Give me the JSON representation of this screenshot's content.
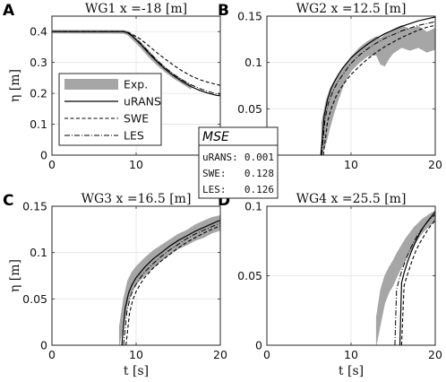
{
  "chart_data": [
    {
      "type": "line",
      "panel_letter": "A",
      "title": "WG1 x =-18 [m]",
      "xlabel": "",
      "ylabel": "η [m]",
      "xlim": [
        0,
        20
      ],
      "ylim": [
        0,
        0.45
      ],
      "xticks": [
        0,
        10
      ],
      "yticks": [
        0,
        0.1,
        0.2,
        0.3,
        0.4
      ],
      "grid": true,
      "legend": {
        "placement": "lower-left",
        "entries": [
          "Exp.",
          "uRANS",
          "SWE",
          "LES"
        ]
      },
      "series": [
        {
          "name": "Exp.",
          "style": "band",
          "color": "#a6a6a6",
          "x": [
            0,
            8.5,
            9.0,
            9.5,
            10.5,
            11.5,
            12.5,
            13.5,
            14.5,
            15.5,
            16.5
          ],
          "lower": [
            0.395,
            0.394,
            0.389,
            0.376,
            0.349,
            0.318,
            0.291,
            0.268,
            0.248,
            0.231,
            0.214
          ],
          "upper": [
            0.405,
            0.404,
            0.401,
            0.392,
            0.367,
            0.338,
            0.309,
            0.284,
            0.262,
            0.245,
            0.228
          ]
        },
        {
          "name": "uRANS",
          "style": "solid",
          "color": "#000000",
          "x": [
            0,
            8.5,
            9.0,
            9.5,
            10.5,
            11.5,
            12.5,
            13.5,
            14.5,
            15.5,
            16.5,
            17.5,
            18.5,
            19.5,
            20
          ],
          "y": [
            0.4,
            0.4,
            0.396,
            0.386,
            0.36,
            0.33,
            0.302,
            0.277,
            0.256,
            0.238,
            0.222,
            0.21,
            0.201,
            0.194,
            0.192
          ]
        },
        {
          "name": "SWE",
          "style": "dashed",
          "color": "#000000",
          "x": [
            0,
            8.5,
            9.0,
            9.5,
            10.5,
            11.5,
            12.5,
            13.5,
            14.5,
            15.5,
            16.5,
            17.5,
            18.5,
            19.5,
            20
          ],
          "y": [
            0.4,
            0.4,
            0.398,
            0.392,
            0.376,
            0.354,
            0.331,
            0.31,
            0.29,
            0.272,
            0.257,
            0.245,
            0.236,
            0.229,
            0.226
          ]
        },
        {
          "name": "LES",
          "style": "dashdot",
          "color": "#000000",
          "x": [
            0,
            8.5,
            9.0,
            9.5,
            10.5,
            11.5,
            12.5,
            13.5,
            14.5,
            15.5,
            16.5,
            17.5,
            18.5,
            19.5,
            20
          ],
          "y": [
            0.4,
            0.4,
            0.397,
            0.388,
            0.363,
            0.334,
            0.306,
            0.282,
            0.261,
            0.243,
            0.228,
            0.216,
            0.206,
            0.199,
            0.197
          ]
        }
      ]
    },
    {
      "type": "line",
      "panel_letter": "B",
      "title": "WG2 x =12.5 [m]",
      "xlabel": "",
      "ylabel": "",
      "xlim": [
        0,
        20
      ],
      "ylim": [
        0,
        0.15
      ],
      "xticks": [
        0,
        10,
        20
      ],
      "yticks": [
        0,
        0.05,
        0.1,
        0.15
      ],
      "grid": true,
      "series": [
        {
          "name": "Exp.",
          "style": "band",
          "color": "#a6a6a6",
          "x": [
            6.5,
            7.0,
            7.5,
            8.0,
            8.5,
            9.0,
            9.5,
            10.0,
            11.0,
            12.0,
            13.0,
            13.5,
            14.0,
            14.5,
            15.0,
            16.0,
            17.0,
            18.0,
            19.0,
            20.0
          ],
          "lower": [
            0.0,
            0.012,
            0.03,
            0.046,
            0.06,
            0.073,
            0.083,
            0.091,
            0.1,
            0.107,
            0.108,
            0.098,
            0.096,
            0.104,
            0.11,
            0.116,
            0.113,
            0.116,
            0.111,
            0.114
          ],
          "upper": [
            0.035,
            0.058,
            0.072,
            0.08,
            0.087,
            0.094,
            0.1,
            0.106,
            0.116,
            0.123,
            0.128,
            0.126,
            0.13,
            0.133,
            0.136,
            0.14,
            0.136,
            0.139,
            0.133,
            0.137
          ]
        },
        {
          "name": "uRANS",
          "style": "solid",
          "color": "#000000",
          "x": [
            6.4,
            6.8,
            7.2,
            7.6,
            8.0,
            8.5,
            9.0,
            10.0,
            11.0,
            12.0,
            13.0,
            14.0,
            15.0,
            16.0,
            17.0,
            18.0,
            19.0,
            20.0
          ],
          "y": [
            0.0,
            0.042,
            0.06,
            0.071,
            0.079,
            0.087,
            0.094,
            0.105,
            0.113,
            0.12,
            0.126,
            0.131,
            0.135,
            0.139,
            0.142,
            0.145,
            0.147,
            0.149
          ]
        },
        {
          "name": "SWE",
          "style": "dashed",
          "color": "#000000",
          "x": [
            6.7,
            7.2,
            7.7,
            8.2,
            8.7,
            9.2,
            10.0,
            11.0,
            12.0,
            13.0,
            14.0,
            15.0,
            16.0,
            17.0,
            18.0,
            19.0,
            20.0
          ],
          "y": [
            0.0,
            0.036,
            0.052,
            0.063,
            0.071,
            0.078,
            0.087,
            0.096,
            0.104,
            0.111,
            0.117,
            0.122,
            0.127,
            0.131,
            0.135,
            0.138,
            0.14
          ]
        },
        {
          "name": "LES",
          "style": "dashdot",
          "color": "#000000",
          "x": [
            6.5,
            6.9,
            7.3,
            7.8,
            8.3,
            8.8,
            9.5,
            10.0,
            11.0,
            12.0,
            13.0,
            14.0,
            15.0,
            16.0,
            17.0,
            18.0,
            19.0,
            20.0
          ],
          "y": [
            0.0,
            0.039,
            0.056,
            0.068,
            0.077,
            0.084,
            0.093,
            0.099,
            0.108,
            0.115,
            0.121,
            0.126,
            0.13,
            0.134,
            0.137,
            0.14,
            0.142,
            0.144
          ]
        }
      ]
    },
    {
      "type": "line",
      "panel_letter": "C",
      "title": "WG3 x =16.5 [m]",
      "xlabel": "t [s]",
      "ylabel": "η [m]",
      "xlim": [
        0,
        20
      ],
      "ylim": [
        0,
        0.15
      ],
      "xticks": [
        0,
        10,
        20
      ],
      "yticks": [
        0,
        0.05,
        0.1,
        0.15
      ],
      "grid": true,
      "series": [
        {
          "name": "Exp.",
          "style": "band",
          "color": "#a6a6a6",
          "x": [
            8.0,
            8.5,
            9.0,
            9.5,
            10.0,
            11.0,
            12.0,
            13.0,
            14.0,
            15.0,
            16.0,
            17.0,
            18.0,
            19.0,
            20.0
          ],
          "lower": [
            0.0,
            0.02,
            0.045,
            0.058,
            0.066,
            0.075,
            0.083,
            0.091,
            0.098,
            0.104,
            0.108,
            0.113,
            0.116,
            0.121,
            0.124
          ],
          "upper": [
            0.02,
            0.05,
            0.07,
            0.079,
            0.085,
            0.094,
            0.102,
            0.108,
            0.114,
            0.12,
            0.124,
            0.13,
            0.134,
            0.138,
            0.14
          ]
        },
        {
          "name": "uRANS",
          "style": "solid",
          "color": "#000000",
          "x": [
            8.3,
            8.7,
            9.1,
            9.5,
            10.0,
            11.0,
            12.0,
            13.0,
            14.0,
            15.0,
            16.0,
            17.0,
            18.0,
            19.0,
            20.0
          ],
          "y": [
            0.0,
            0.04,
            0.056,
            0.065,
            0.073,
            0.084,
            0.093,
            0.1,
            0.107,
            0.113,
            0.118,
            0.123,
            0.127,
            0.131,
            0.135
          ]
        },
        {
          "name": "SWE",
          "style": "dashed",
          "color": "#000000",
          "x": [
            8.8,
            9.2,
            9.6,
            10.0,
            10.5,
            11.0,
            12.0,
            13.0,
            14.0,
            15.0,
            16.0,
            17.0,
            18.0,
            19.0,
            20.0
          ],
          "y": [
            0.0,
            0.034,
            0.049,
            0.058,
            0.066,
            0.073,
            0.083,
            0.091,
            0.098,
            0.105,
            0.111,
            0.116,
            0.121,
            0.125,
            0.129
          ]
        },
        {
          "name": "LES",
          "style": "dashdot",
          "color": "#000000",
          "x": [
            8.5,
            8.9,
            9.3,
            9.7,
            10.2,
            11.0,
            12.0,
            13.0,
            14.0,
            15.0,
            16.0,
            17.0,
            18.0,
            19.0,
            20.0
          ],
          "y": [
            0.0,
            0.036,
            0.052,
            0.061,
            0.069,
            0.079,
            0.088,
            0.096,
            0.103,
            0.109,
            0.115,
            0.12,
            0.124,
            0.128,
            0.132
          ]
        }
      ]
    },
    {
      "type": "line",
      "panel_letter": "D",
      "title": "WG4 x =25.5 [m]",
      "xlabel": "t [s]",
      "ylabel": "",
      "xlim": [
        0,
        20
      ],
      "ylim": [
        0,
        0.1
      ],
      "xticks": [
        0,
        10,
        20
      ],
      "yticks": [
        0,
        0.05,
        0.1
      ],
      "grid": true,
      "series": [
        {
          "name": "Exp.",
          "style": "band",
          "color": "#a6a6a6",
          "x": [
            13.0,
            13.5,
            14.0,
            14.5,
            15.0,
            15.5,
            16.0,
            16.5,
            17.0,
            17.5,
            18.0,
            18.5,
            19.0,
            19.5,
            20.0
          ],
          "lower": [
            0.0,
            0.015,
            0.03,
            0.038,
            0.043,
            0.05,
            0.056,
            0.062,
            0.067,
            0.072,
            0.077,
            0.081,
            0.084,
            0.087,
            0.089
          ],
          "upper": [
            0.02,
            0.04,
            0.05,
            0.056,
            0.061,
            0.067,
            0.072,
            0.077,
            0.081,
            0.085,
            0.088,
            0.091,
            0.093,
            0.095,
            0.097
          ]
        },
        {
          "name": "uRANS",
          "style": "solid",
          "color": "#000000",
          "x": [
            15.8,
            16.0,
            16.3,
            16.7,
            17.2,
            17.7,
            18.2,
            18.7,
            19.2,
            19.6,
            20.0
          ],
          "y": [
            0.0,
            0.045,
            0.052,
            0.06,
            0.068,
            0.075,
            0.081,
            0.086,
            0.09,
            0.093,
            0.096
          ]
        },
        {
          "name": "SWE",
          "style": "dashed",
          "color": "#000000",
          "x": [
            16.0,
            16.3,
            16.7,
            17.2,
            17.7,
            18.2,
            18.7,
            19.2,
            19.6,
            20.0
          ],
          "y": [
            0.0,
            0.043,
            0.051,
            0.06,
            0.068,
            0.074,
            0.079,
            0.084,
            0.087,
            0.09
          ]
        },
        {
          "name": "LES",
          "style": "dashdot",
          "color": "#000000",
          "x": [
            15.2,
            15.4,
            15.7,
            16.1,
            16.6,
            17.1,
            17.6,
            18.1,
            18.6,
            19.1,
            19.6,
            20.0
          ],
          "y": [
            0.0,
            0.04,
            0.047,
            0.055,
            0.063,
            0.07,
            0.076,
            0.081,
            0.085,
            0.089,
            0.092,
            0.094
          ]
        }
      ]
    }
  ],
  "mse_table": {
    "title": "MSE",
    "rows": [
      {
        "label": "uRANS:",
        "value": "0.001"
      },
      {
        "label": "SWE:",
        "value": "0.128"
      },
      {
        "label": "LES:",
        "value": "0.126"
      }
    ]
  },
  "colors": {
    "band": "#a6a6a6",
    "line": "#000000",
    "grid": "#e3e3e3",
    "axis": "#262626"
  }
}
